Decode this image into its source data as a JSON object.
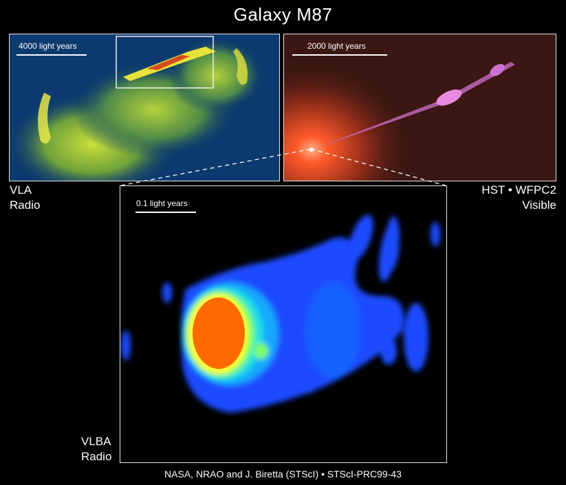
{
  "title": "Galaxy M87",
  "panels": {
    "vla": {
      "scale_label": "4000 light years",
      "label_line1": "VLA",
      "label_line2": "Radio"
    },
    "hst": {
      "scale_label": "2000 light years",
      "label_line1": "HST • WFPC2",
      "label_line2": "Visible"
    },
    "vlba": {
      "scale_label": "0.1 light years",
      "label_line1": "VLBA",
      "label_line2": "Radio"
    }
  },
  "credit": "NASA, NRAO and J. Biretta (STScI) • STScI-PRC99-43",
  "colors": {
    "background": "#000000",
    "vla_bg": "#0c3a6e",
    "vla_emission": "#9ccf2a",
    "hst_bg": "#3a1712",
    "hst_core": "#ff5a2a",
    "hst_jet": "#d878d8",
    "vlba_bg": "#000000",
    "vlba_outer": "#1a4cff",
    "vlba_core": "#ff6a00"
  }
}
